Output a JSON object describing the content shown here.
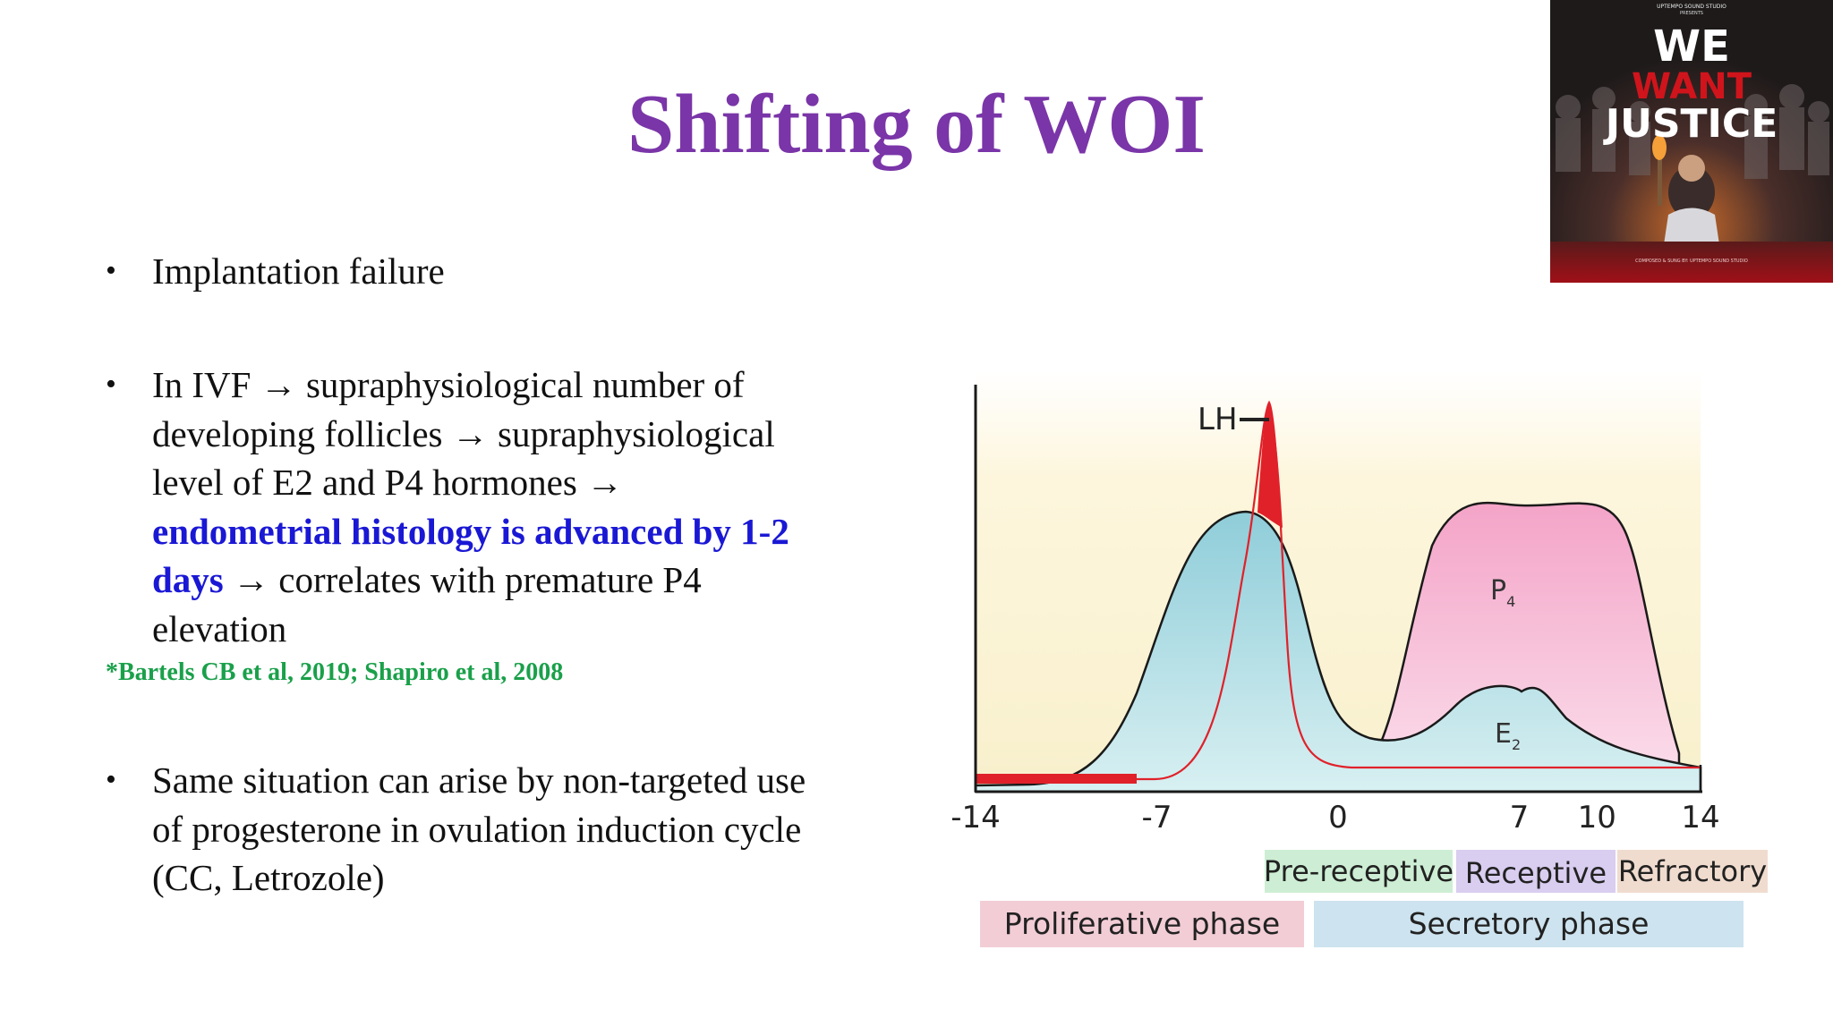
{
  "slide": {
    "title": "Shifting of WOI",
    "title_color": "#7a35a8",
    "bullets": [
      {
        "text": "Implantation failure"
      },
      {
        "lines": [
          "In IVF → supraphysiological number of",
          "developing follicles → supraphysiological",
          "level of E2 and P4 hormones →"
        ],
        "highlight_lines": [
          "endometrial histology is advanced by 1-2",
          "days"
        ],
        "after_highlight": " → correlates with premature P4",
        "last_line": "elevation",
        "highlight_color": "#1a18d4"
      },
      {
        "lines": [
          "Same situation can arise by non-targeted use",
          "of progesterone in ovulation induction cycle",
          "(CC, Letrozole)"
        ]
      }
    ],
    "citation": "*Bartels CB et al, 2019; Shapiro et al, 2008",
    "citation_color": "#1aa04a"
  },
  "poster": {
    "top_text": "UPTEMPO SOUND STUDIO",
    "presents": "PRESENTS",
    "line1": "WE",
    "line2": "WANT",
    "line3": "JUSTICE",
    "credits": "COMPOSED & SUNG BY: UPTEMPO SOUND STUDIO",
    "bg_color": "#2a2424",
    "accent_color": "#c8141c"
  },
  "chart_data": {
    "type": "area",
    "xlabel": "",
    "ylabel": "",
    "xlim": [
      -14,
      14
    ],
    "x_ticks": [
      "-14",
      "-7",
      "0",
      "7",
      "10",
      "14"
    ],
    "series": [
      {
        "name": "LH",
        "color": "#e0212a",
        "label_text": "LH"
      },
      {
        "name": "E2",
        "color": "#9fd6e0",
        "label_main": "E",
        "label_sub": "2"
      },
      {
        "name": "P4",
        "color": "#f4a4c8",
        "label_main": "P",
        "label_sub": "4"
      }
    ],
    "windows": [
      {
        "label": "Pre-receptive",
        "color": "#cdeed4"
      },
      {
        "label": "Receptive",
        "color": "#d9cdf0"
      },
      {
        "label": "Refractory",
        "color": "#f0dccf"
      }
    ],
    "phases": [
      {
        "label": "Proliferative phase",
        "color": "#f2cdd6"
      },
      {
        "label": "Secretory phase",
        "color": "#cde3ef"
      }
    ]
  }
}
